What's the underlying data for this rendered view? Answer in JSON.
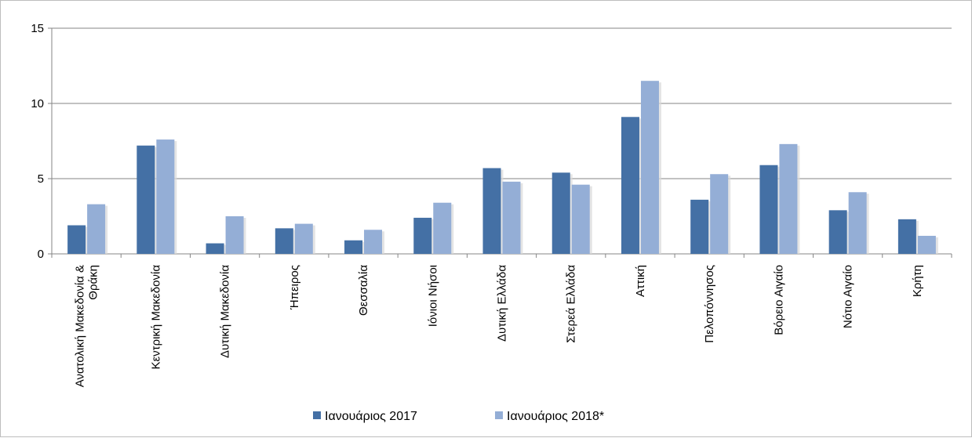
{
  "chart_data": {
    "type": "bar",
    "title": "",
    "xlabel": "",
    "ylabel": "",
    "ylim": [
      0,
      15
    ],
    "yticks": [
      "0",
      "5",
      "10",
      "15"
    ],
    "grid": true,
    "legend_position": "bottom",
    "categories": [
      [
        "Ανατολική Μακεδονία &",
        "Θράκη"
      ],
      [
        "Κεντρική Μακεδονία"
      ],
      [
        "Δυτική Μακεδονία"
      ],
      [
        "Ήπειρος"
      ],
      [
        "Θεσσαλία"
      ],
      [
        "Ιόνιοι Νήσοι"
      ],
      [
        "Δυτική Ελλάδα"
      ],
      [
        "Στερεά Ελλάδα"
      ],
      [
        "Αττική"
      ],
      [
        "Πελοπόννησος"
      ],
      [
        "Βόρειο Αιγαίο"
      ],
      [
        "Νότιο Αιγαίο"
      ],
      [
        "Κρήτη"
      ]
    ],
    "series": [
      {
        "name": "Ιανουάριος 2017",
        "color": "#4470a5",
        "values": [
          1.9,
          7.2,
          0.7,
          1.7,
          0.9,
          2.4,
          5.7,
          5.4,
          9.1,
          3.6,
          5.9,
          2.9,
          2.3
        ]
      },
      {
        "name": "Ιανουάριος 2018*",
        "color": "#94aed6",
        "values": [
          3.3,
          7.6,
          2.5,
          2.0,
          1.6,
          3.4,
          4.8,
          4.6,
          11.5,
          5.3,
          7.3,
          4.1,
          1.2
        ]
      }
    ]
  }
}
